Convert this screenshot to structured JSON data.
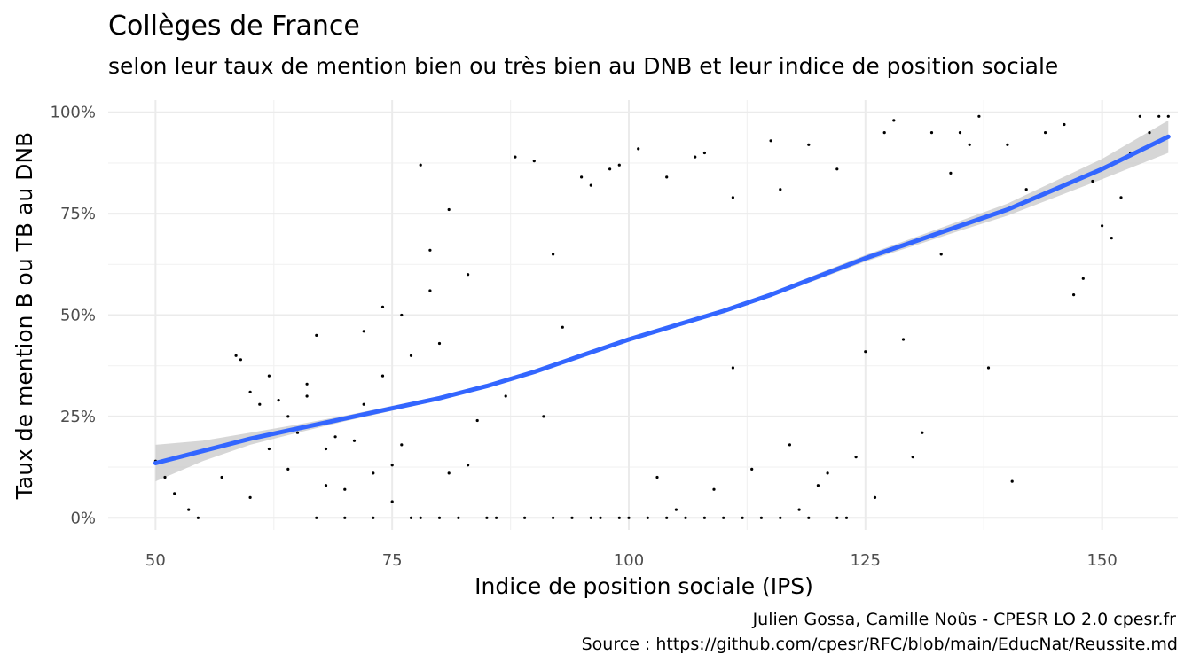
{
  "chart_data": {
    "type": "scatter",
    "title": "Collèges de France",
    "subtitle": "selon leur taux de mention bien ou très bien au DNB et leur indice de position sociale",
    "xlabel": "Indice de position sociale (IPS)",
    "ylabel": "Taux de mention B ou TB au DNB",
    "xlim": [
      45,
      158
    ],
    "ylim": [
      -3,
      103
    ],
    "x_ticks": [
      50,
      75,
      100,
      125,
      150
    ],
    "x_tick_labels": [
      "50",
      "75",
      "100",
      "125",
      "150"
    ],
    "y_ticks": [
      0,
      25,
      50,
      75,
      100
    ],
    "y_tick_labels": [
      "0%",
      "25%",
      "50%",
      "75%",
      "100%"
    ],
    "grid": true,
    "legend": "none",
    "caption_lines": [
      "Julien Gossa, Camille Noûs - CPESR LO 2.0 cpesr.fr",
      "Source : https://github.com/cpesr/RFC/blob/main/EducNat/Reussite.md"
    ],
    "trend": {
      "method": "smooth",
      "color": "#3366ff",
      "band_color": "#c8c8c8",
      "x": [
        50,
        55,
        60,
        65,
        70,
        75,
        80,
        85,
        90,
        95,
        100,
        105,
        110,
        115,
        120,
        125,
        130,
        135,
        140,
        145,
        150,
        157
      ],
      "y": [
        13.5,
        16.5,
        19.5,
        22,
        24.5,
        27,
        29.5,
        32.5,
        36,
        40,
        44,
        47.5,
        51,
        55,
        59.5,
        64,
        68,
        72,
        76,
        81,
        86,
        94
      ],
      "lower": [
        9,
        14,
        18,
        21,
        23.8,
        26.4,
        29,
        32.1,
        35.7,
        39.7,
        43.7,
        47.2,
        50.6,
        54.5,
        58.8,
        63.2,
        67,
        70.8,
        74.5,
        79,
        83.5,
        90
      ],
      "upper": [
        18,
        19,
        21,
        23,
        25.2,
        27.6,
        30,
        32.9,
        36.3,
        40.3,
        44.3,
        47.8,
        51.4,
        55.5,
        60.2,
        64.8,
        69,
        73.2,
        77.5,
        83,
        88.5,
        98
      ]
    },
    "points": [
      [
        50,
        14
      ],
      [
        52,
        6
      ],
      [
        53.5,
        2
      ],
      [
        54.5,
        0
      ],
      [
        51,
        10
      ],
      [
        58.5,
        40
      ],
      [
        59,
        39
      ],
      [
        60,
        5
      ],
      [
        61,
        28
      ],
      [
        62,
        17
      ],
      [
        63,
        29
      ],
      [
        64,
        12
      ],
      [
        65,
        21
      ],
      [
        66,
        33
      ],
      [
        67,
        0
      ],
      [
        68,
        8
      ],
      [
        69,
        20
      ],
      [
        70,
        0
      ],
      [
        71,
        19
      ],
      [
        72,
        28
      ],
      [
        73,
        0
      ],
      [
        74,
        35
      ],
      [
        75,
        4
      ],
      [
        76,
        18
      ],
      [
        77,
        0
      ],
      [
        78,
        0
      ],
      [
        79,
        56
      ],
      [
        80,
        0
      ],
      [
        81,
        11
      ],
      [
        82,
        0
      ],
      [
        83,
        13
      ],
      [
        84,
        24
      ],
      [
        85,
        0
      ],
      [
        86,
        0
      ],
      [
        87,
        30
      ],
      [
        88,
        89
      ],
      [
        89,
        0
      ],
      [
        90,
        88
      ],
      [
        91,
        25
      ],
      [
        92,
        0
      ],
      [
        93,
        47
      ],
      [
        94,
        0
      ],
      [
        95,
        84
      ],
      [
        96,
        0
      ],
      [
        97,
        0
      ],
      [
        98,
        86
      ],
      [
        99,
        0
      ],
      [
        100,
        0
      ],
      [
        101,
        91
      ],
      [
        102,
        0
      ],
      [
        103,
        10
      ],
      [
        104,
        0
      ],
      [
        105,
        2
      ],
      [
        106,
        0
      ],
      [
        107,
        89
      ],
      [
        108,
        0
      ],
      [
        109,
        7
      ],
      [
        110,
        0
      ],
      [
        111,
        37
      ],
      [
        112,
        0
      ],
      [
        113,
        12
      ],
      [
        114,
        0
      ],
      [
        115,
        93
      ],
      [
        116,
        0
      ],
      [
        117,
        18
      ],
      [
        118,
        2
      ],
      [
        119,
        0
      ],
      [
        120,
        8
      ],
      [
        121,
        11
      ],
      [
        122,
        0
      ],
      [
        123,
        0
      ],
      [
        124,
        15
      ],
      [
        125,
        41
      ],
      [
        126,
        5
      ],
      [
        127,
        95
      ],
      [
        128,
        98
      ],
      [
        129,
        44
      ],
      [
        130,
        15
      ],
      [
        131,
        21
      ],
      [
        132,
        95
      ],
      [
        133,
        65
      ],
      [
        134,
        85
      ],
      [
        135,
        95
      ],
      [
        136,
        92
      ],
      [
        137,
        99
      ],
      [
        138,
        37
      ],
      [
        140,
        92
      ],
      [
        140.5,
        9
      ],
      [
        142,
        81
      ],
      [
        144,
        95
      ],
      [
        146,
        97
      ],
      [
        147,
        55
      ],
      [
        148,
        59
      ],
      [
        149,
        83
      ],
      [
        150,
        72
      ],
      [
        151,
        69
      ],
      [
        152,
        79
      ],
      [
        153,
        90
      ],
      [
        154,
        99
      ],
      [
        155,
        95
      ],
      [
        156,
        99
      ],
      [
        157,
        99
      ],
      [
        78,
        87
      ],
      [
        81,
        76
      ],
      [
        92,
        65
      ],
      [
        96,
        82
      ],
      [
        99,
        87
      ],
      [
        104,
        84
      ],
      [
        108,
        90
      ],
      [
        111,
        79
      ],
      [
        116,
        81
      ],
      [
        119,
        92
      ],
      [
        122,
        86
      ],
      [
        66,
        30
      ],
      [
        67,
        45
      ],
      [
        72,
        46
      ],
      [
        74,
        52
      ],
      [
        76,
        50
      ],
      [
        79,
        66
      ],
      [
        83,
        60
      ],
      [
        70,
        7
      ],
      [
        68,
        17
      ],
      [
        64,
        25
      ],
      [
        60,
        31
      ],
      [
        57,
        10
      ],
      [
        62,
        35
      ],
      [
        73,
        11
      ],
      [
        75,
        13
      ],
      [
        77,
        40
      ],
      [
        80,
        43
      ]
    ]
  }
}
